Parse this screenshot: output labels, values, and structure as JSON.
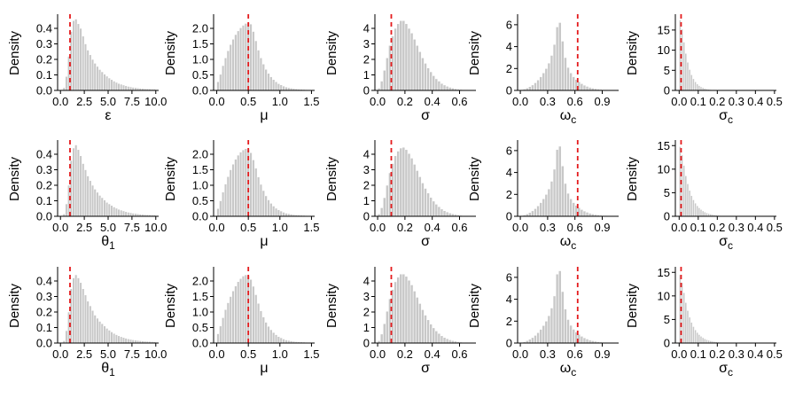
{
  "colors": {
    "bar_fill": "#c8c8c8",
    "bar_edge": "#ffffff",
    "reference_line": "#e41a1c",
    "axis": "#000000"
  },
  "chart_data": [
    {
      "type": "histogram",
      "row": 1,
      "col": 1,
      "xlabel": "ε",
      "xlabel_sub": "",
      "ylabel": "Density",
      "xlim": [
        -0.3,
        10.3
      ],
      "ylim": [
        0,
        0.48
      ],
      "xticks": [
        0.0,
        2.5,
        5.0,
        7.5,
        10.0
      ],
      "xtick_labels": [
        "0.0",
        "2.5",
        "5.0",
        "7.5",
        "10.0"
      ],
      "yticks": [
        0.0,
        0.1,
        0.2,
        0.3,
        0.4
      ],
      "ytick_labels": [
        "0.0",
        "0.1",
        "0.2",
        "0.3",
        "0.4"
      ],
      "reference_x": 1.0,
      "bin_start": 0.0,
      "bin_width": 0.25,
      "densities": [
        0.0,
        0.018,
        0.09,
        0.22,
        0.38,
        0.45,
        0.46,
        0.43,
        0.4,
        0.35,
        0.3,
        0.26,
        0.23,
        0.2,
        0.175,
        0.155,
        0.135,
        0.12,
        0.105,
        0.092,
        0.08,
        0.07,
        0.06,
        0.052,
        0.045,
        0.04,
        0.035,
        0.03,
        0.026,
        0.023,
        0.02,
        0.018,
        0.016,
        0.014,
        0.012,
        0.011,
        0.01,
        0.009,
        0.008,
        0.008
      ]
    },
    {
      "type": "histogram",
      "row": 1,
      "col": 2,
      "xlabel": "μ",
      "xlabel_sub": "",
      "ylabel": "Density",
      "xlim": [
        -0.05,
        1.55
      ],
      "ylim": [
        0,
        2.4
      ],
      "xticks": [
        0.0,
        0.5,
        1.0,
        1.5
      ],
      "xtick_labels": [
        "0.0",
        "0.5",
        "1.0",
        "1.5"
      ],
      "yticks": [
        0.0,
        0.5,
        1.0,
        1.5,
        2.0
      ],
      "ytick_labels": [
        "0.0",
        "0.5",
        "1.0",
        "1.5",
        "2.0"
      ],
      "reference_x": 0.5,
      "bin_start": 0.0,
      "bin_width": 0.04,
      "densities": [
        0.28,
        0.52,
        0.8,
        1.05,
        1.28,
        1.48,
        1.65,
        1.8,
        1.92,
        2.02,
        2.1,
        2.16,
        2.18,
        2.14,
        1.9,
        1.6,
        1.3,
        1.05,
        0.85,
        0.68,
        0.55,
        0.44,
        0.35,
        0.28,
        0.22,
        0.18,
        0.14,
        0.11,
        0.09,
        0.075,
        0.06,
        0.05,
        0.04,
        0.035,
        0.03,
        0.025,
        0.02,
        0.02
      ]
    },
    {
      "type": "histogram",
      "row": 1,
      "col": 3,
      "xlabel": "σ",
      "xlabel_sub": "",
      "ylabel": "Density",
      "xlim": [
        -0.02,
        0.72
      ],
      "ylim": [
        0,
        4.8
      ],
      "xticks": [
        0.0,
        0.2,
        0.4,
        0.6
      ],
      "xtick_labels": [
        "0.0",
        "0.2",
        "0.4",
        "0.6"
      ],
      "yticks": [
        0,
        1,
        2,
        3,
        4
      ],
      "ytick_labels": [
        "0",
        "1",
        "2",
        "3",
        "4"
      ],
      "reference_x": 0.1,
      "bin_start": 0.0,
      "bin_width": 0.02,
      "densities": [
        0.15,
        0.6,
        1.3,
        2.1,
        2.9,
        3.5,
        4.0,
        4.3,
        4.5,
        4.5,
        4.3,
        4.0,
        3.7,
        3.3,
        2.9,
        2.5,
        2.1,
        1.75,
        1.45,
        1.2,
        0.95,
        0.75,
        0.6,
        0.45,
        0.35,
        0.27,
        0.2,
        0.15,
        0.11,
        0.08,
        0.06,
        0.045,
        0.03,
        0.02,
        0.015
      ]
    },
    {
      "type": "histogram",
      "row": 1,
      "col": 4,
      "xlabel": "ω",
      "xlabel_sub": "c",
      "ylabel": "Density",
      "xlim": [
        -0.03,
        1.08
      ],
      "ylim": [
        0,
        6.8
      ],
      "xticks": [
        0.0,
        0.3,
        0.6,
        0.9
      ],
      "xtick_labels": [
        "0.0",
        "0.3",
        "0.6",
        "0.9"
      ],
      "yticks": [
        0,
        2,
        4,
        6
      ],
      "ytick_labels": [
        "0",
        "2",
        "4",
        "6"
      ],
      "reference_x": 0.63,
      "bin_start": 0.0,
      "bin_width": 0.03,
      "densities": [
        0.05,
        0.12,
        0.22,
        0.35,
        0.5,
        0.7,
        0.95,
        1.25,
        1.6,
        2.0,
        2.5,
        3.2,
        4.2,
        5.8,
        6.2,
        4.5,
        3.0,
        2.1,
        1.6,
        1.25,
        1.0,
        0.8,
        0.62,
        0.48,
        0.37,
        0.28,
        0.21,
        0.16,
        0.12,
        0.09,
        0.07,
        0.05,
        0.04,
        0.03,
        0.02
      ]
    },
    {
      "type": "histogram",
      "row": 1,
      "col": 5,
      "xlabel": "σ",
      "xlabel_sub": "c",
      "ylabel": "Density",
      "xlim": [
        -0.02,
        0.51
      ],
      "ylim": [
        0,
        18.5
      ],
      "xticks": [
        0.0,
        0.1,
        0.2,
        0.3,
        0.4,
        0.5
      ],
      "xtick_labels": [
        "0.0",
        "0.1",
        "0.2",
        "0.3",
        "0.4",
        "0.5"
      ],
      "yticks": [
        0,
        5,
        10,
        15
      ],
      "ytick_labels": [
        "0",
        "5",
        "10",
        "15"
      ],
      "reference_x": 0.01,
      "bin_start": 0.0,
      "bin_width": 0.01,
      "densities": [
        17.5,
        15.2,
        12.0,
        9.2,
        7.0,
        5.2,
        3.9,
        2.9,
        2.15,
        1.6,
        1.2,
        0.9,
        0.68,
        0.5,
        0.38,
        0.28,
        0.21,
        0.16,
        0.12,
        0.09,
        0.07,
        0.05,
        0.04,
        0.03,
        0.02
      ]
    },
    {
      "type": "histogram",
      "row": 2,
      "col": 1,
      "xlabel": "θ",
      "xlabel_sub": "1",
      "ylabel": "Density",
      "xlim": [
        -0.3,
        10.3
      ],
      "ylim": [
        0,
        0.48
      ],
      "xticks": [
        0.0,
        2.5,
        5.0,
        7.5,
        10.0
      ],
      "xtick_labels": [
        "0.0",
        "2.5",
        "5.0",
        "7.5",
        "10.0"
      ],
      "yticks": [
        0.0,
        0.1,
        0.2,
        0.3,
        0.4
      ],
      "ytick_labels": [
        "0.0",
        "0.1",
        "0.2",
        "0.3",
        "0.4"
      ],
      "reference_x": 1.0,
      "bin_start": 0.0,
      "bin_width": 0.25,
      "densities": [
        0.0,
        0.015,
        0.08,
        0.2,
        0.36,
        0.44,
        0.46,
        0.43,
        0.39,
        0.34,
        0.3,
        0.26,
        0.23,
        0.2,
        0.175,
        0.155,
        0.135,
        0.12,
        0.105,
        0.09,
        0.08,
        0.07,
        0.06,
        0.052,
        0.045,
        0.04,
        0.035,
        0.03,
        0.026,
        0.023,
        0.02,
        0.018,
        0.016,
        0.014,
        0.012,
        0.011,
        0.01,
        0.009,
        0.008,
        0.008
      ]
    },
    {
      "type": "histogram",
      "row": 2,
      "col": 2,
      "xlabel": "μ",
      "xlabel_sub": "",
      "ylabel": "Density",
      "xlim": [
        -0.05,
        1.55
      ],
      "ylim": [
        0,
        2.4
      ],
      "xticks": [
        0.0,
        0.5,
        1.0,
        1.5
      ],
      "xtick_labels": [
        "0.0",
        "0.5",
        "1.0",
        "1.5"
      ],
      "yticks": [
        0.0,
        0.5,
        1.0,
        1.5,
        2.0
      ],
      "ytick_labels": [
        "0.0",
        "0.5",
        "1.0",
        "1.5",
        "2.0"
      ],
      "reference_x": 0.5,
      "bin_start": 0.0,
      "bin_width": 0.04,
      "densities": [
        0.25,
        0.5,
        0.78,
        1.04,
        1.28,
        1.5,
        1.68,
        1.84,
        1.97,
        2.07,
        2.14,
        2.18,
        2.16,
        2.05,
        1.82,
        1.55,
        1.27,
        1.03,
        0.83,
        0.66,
        0.53,
        0.42,
        0.33,
        0.26,
        0.21,
        0.17,
        0.13,
        0.1,
        0.085,
        0.07,
        0.055,
        0.045,
        0.04,
        0.035,
        0.03,
        0.025,
        0.02,
        0.02
      ]
    },
    {
      "type": "histogram",
      "row": 2,
      "col": 3,
      "xlabel": "σ",
      "xlabel_sub": "",
      "ylabel": "Density",
      "xlim": [
        -0.02,
        0.72
      ],
      "ylim": [
        0,
        4.8
      ],
      "xticks": [
        0.0,
        0.2,
        0.4,
        0.6
      ],
      "xtick_labels": [
        "0.0",
        "0.2",
        "0.4",
        "0.6"
      ],
      "yticks": [
        0,
        1,
        2,
        3,
        4
      ],
      "ytick_labels": [
        "0",
        "1",
        "2",
        "3",
        "4"
      ],
      "reference_x": 0.1,
      "bin_start": 0.0,
      "bin_width": 0.02,
      "densities": [
        0.15,
        0.55,
        1.2,
        2.0,
        2.8,
        3.4,
        3.9,
        4.2,
        4.4,
        4.45,
        4.3,
        4.05,
        3.75,
        3.35,
        2.95,
        2.55,
        2.15,
        1.8,
        1.5,
        1.22,
        0.98,
        0.78,
        0.62,
        0.47,
        0.36,
        0.28,
        0.21,
        0.16,
        0.12,
        0.085,
        0.06,
        0.045,
        0.03,
        0.02,
        0.015
      ]
    },
    {
      "type": "histogram",
      "row": 2,
      "col": 4,
      "xlabel": "ω",
      "xlabel_sub": "c",
      "ylabel": "Density",
      "xlim": [
        -0.03,
        1.08
      ],
      "ylim": [
        0,
        6.8
      ],
      "xticks": [
        0.0,
        0.3,
        0.6,
        0.9
      ],
      "xtick_labels": [
        "0.0",
        "0.3",
        "0.6",
        "0.9"
      ],
      "yticks": [
        0,
        2,
        4,
        6
      ],
      "ytick_labels": [
        "0",
        "2",
        "4",
        "6"
      ],
      "reference_x": 0.63,
      "bin_start": 0.0,
      "bin_width": 0.03,
      "densities": [
        0.05,
        0.12,
        0.22,
        0.35,
        0.5,
        0.7,
        0.95,
        1.25,
        1.6,
        2.0,
        2.5,
        3.2,
        4.3,
        6.1,
        6.4,
        4.6,
        3.0,
        2.1,
        1.6,
        1.25,
        1.0,
        0.8,
        0.62,
        0.48,
        0.37,
        0.28,
        0.21,
        0.16,
        0.12,
        0.09,
        0.07,
        0.05,
        0.04,
        0.03,
        0.02
      ]
    },
    {
      "type": "histogram",
      "row": 2,
      "col": 5,
      "xlabel": "σ",
      "xlabel_sub": "c",
      "ylabel": "Density",
      "xlim": [
        -0.02,
        0.51
      ],
      "ylim": [
        0,
        15.8
      ],
      "xticks": [
        0.0,
        0.1,
        0.2,
        0.3,
        0.4,
        0.5
      ],
      "xtick_labels": [
        "0.0",
        "0.1",
        "0.2",
        "0.3",
        "0.4",
        "0.5"
      ],
      "yticks": [
        0,
        5,
        10,
        15
      ],
      "ytick_labels": [
        "0",
        "5",
        "10",
        "15"
      ],
      "reference_x": 0.01,
      "bin_start": 0.0,
      "bin_width": 0.01,
      "densities": [
        14.8,
        13.0,
        10.8,
        8.6,
        6.9,
        5.5,
        4.4,
        3.5,
        2.8,
        2.25,
        1.8,
        1.45,
        1.15,
        0.92,
        0.74,
        0.6,
        0.48,
        0.39,
        0.31,
        0.25,
        0.2,
        0.16,
        0.13,
        0.1,
        0.08,
        0.065,
        0.05,
        0.04,
        0.03,
        0.025
      ]
    },
    {
      "type": "histogram",
      "row": 3,
      "col": 1,
      "xlabel": "θ",
      "xlabel_sub": "1",
      "ylabel": "Density",
      "xlim": [
        -0.3,
        10.3
      ],
      "ylim": [
        0,
        0.48
      ],
      "xticks": [
        0.0,
        2.5,
        5.0,
        7.5,
        10.0
      ],
      "xtick_labels": [
        "0.0",
        "2.5",
        "5.0",
        "7.5",
        "10.0"
      ],
      "yticks": [
        0.0,
        0.1,
        0.2,
        0.3,
        0.4
      ],
      "ytick_labels": [
        "0.0",
        "0.1",
        "0.2",
        "0.3",
        "0.4"
      ],
      "reference_x": 1.0,
      "bin_start": 0.0,
      "bin_width": 0.25,
      "densities": [
        0.0,
        0.015,
        0.08,
        0.2,
        0.35,
        0.42,
        0.44,
        0.42,
        0.39,
        0.35,
        0.31,
        0.27,
        0.24,
        0.21,
        0.18,
        0.16,
        0.14,
        0.125,
        0.11,
        0.095,
        0.083,
        0.072,
        0.062,
        0.054,
        0.047,
        0.041,
        0.036,
        0.031,
        0.027,
        0.024,
        0.021,
        0.019,
        0.017,
        0.015,
        0.013,
        0.012,
        0.011,
        0.01,
        0.009,
        0.008
      ]
    },
    {
      "type": "histogram",
      "row": 3,
      "col": 2,
      "xlabel": "μ",
      "xlabel_sub": "",
      "ylabel": "Density",
      "xlim": [
        -0.05,
        1.55
      ],
      "ylim": [
        0,
        2.4
      ],
      "xticks": [
        0.0,
        0.5,
        1.0,
        1.5
      ],
      "xtick_labels": [
        "0.0",
        "0.5",
        "1.0",
        "1.5"
      ],
      "yticks": [
        0.0,
        0.5,
        1.0,
        1.5,
        2.0
      ],
      "ytick_labels": [
        "0.0",
        "0.5",
        "1.0",
        "1.5",
        "2.0"
      ],
      "reference_x": 0.5,
      "bin_start": 0.0,
      "bin_width": 0.04,
      "densities": [
        0.3,
        0.55,
        0.82,
        1.08,
        1.3,
        1.5,
        1.68,
        1.84,
        1.98,
        2.08,
        2.16,
        2.2,
        2.17,
        2.05,
        1.83,
        1.56,
        1.28,
        1.04,
        0.84,
        0.67,
        0.54,
        0.43,
        0.34,
        0.27,
        0.21,
        0.17,
        0.13,
        0.1,
        0.085,
        0.07,
        0.055,
        0.045,
        0.04,
        0.035,
        0.03,
        0.025,
        0.02,
        0.02
      ]
    },
    {
      "type": "histogram",
      "row": 3,
      "col": 3,
      "xlabel": "σ",
      "xlabel_sub": "",
      "ylabel": "Density",
      "xlim": [
        -0.02,
        0.72
      ],
      "ylim": [
        0,
        4.8
      ],
      "xticks": [
        0.0,
        0.2,
        0.4,
        0.6
      ],
      "xtick_labels": [
        "0.0",
        "0.2",
        "0.4",
        "0.6"
      ],
      "yticks": [
        0,
        1,
        2,
        3,
        4
      ],
      "ytick_labels": [
        "0",
        "1",
        "2",
        "3",
        "4"
      ],
      "reference_x": 0.1,
      "bin_start": 0.0,
      "bin_width": 0.02,
      "densities": [
        0.15,
        0.58,
        1.25,
        2.05,
        2.85,
        3.45,
        3.95,
        4.25,
        4.45,
        4.45,
        4.3,
        4.05,
        3.75,
        3.35,
        2.95,
        2.55,
        2.15,
        1.8,
        1.5,
        1.22,
        0.98,
        0.78,
        0.62,
        0.47,
        0.36,
        0.28,
        0.21,
        0.16,
        0.12,
        0.085,
        0.06,
        0.045,
        0.03,
        0.02,
        0.015
      ]
    },
    {
      "type": "histogram",
      "row": 3,
      "col": 4,
      "xlabel": "ω",
      "xlabel_sub": "c",
      "ylabel": "Density",
      "xlim": [
        -0.03,
        1.08
      ],
      "ylim": [
        0,
        6.8
      ],
      "xticks": [
        0.0,
        0.3,
        0.6,
        0.9
      ],
      "xtick_labels": [
        "0.0",
        "0.3",
        "0.6",
        "0.9"
      ],
      "yticks": [
        0,
        2,
        4,
        6
      ],
      "ytick_labels": [
        "0",
        "2",
        "4",
        "6"
      ],
      "reference_x": 0.63,
      "bin_start": 0.0,
      "bin_width": 0.03,
      "densities": [
        0.05,
        0.12,
        0.22,
        0.35,
        0.5,
        0.7,
        0.95,
        1.25,
        1.6,
        2.0,
        2.5,
        3.2,
        4.3,
        6.3,
        6.6,
        4.7,
        3.1,
        2.15,
        1.62,
        1.26,
        1.0,
        0.8,
        0.62,
        0.48,
        0.37,
        0.28,
        0.21,
        0.16,
        0.12,
        0.09,
        0.07,
        0.05,
        0.04,
        0.03,
        0.02
      ]
    },
    {
      "type": "histogram",
      "row": 3,
      "col": 5,
      "xlabel": "σ",
      "xlabel_sub": "c",
      "ylabel": "Density",
      "xlim": [
        -0.02,
        0.51
      ],
      "ylim": [
        0,
        15.8
      ],
      "xticks": [
        0.0,
        0.1,
        0.2,
        0.3,
        0.4,
        0.5
      ],
      "xtick_labels": [
        "0.0",
        "0.1",
        "0.2",
        "0.3",
        "0.4",
        "0.5"
      ],
      "yticks": [
        0,
        5,
        10,
        15
      ],
      "ytick_labels": [
        "0",
        "5",
        "10",
        "15"
      ],
      "reference_x": 0.01,
      "bin_start": 0.0,
      "bin_width": 0.01,
      "densities": [
        14.5,
        12.8,
        10.7,
        8.6,
        6.9,
        5.5,
        4.4,
        3.5,
        2.8,
        2.25,
        1.8,
        1.45,
        1.15,
        0.92,
        0.74,
        0.6,
        0.48,
        0.39,
        0.31,
        0.25,
        0.2,
        0.16,
        0.13,
        0.1,
        0.08,
        0.065,
        0.05,
        0.04,
        0.03,
        0.025
      ]
    }
  ]
}
